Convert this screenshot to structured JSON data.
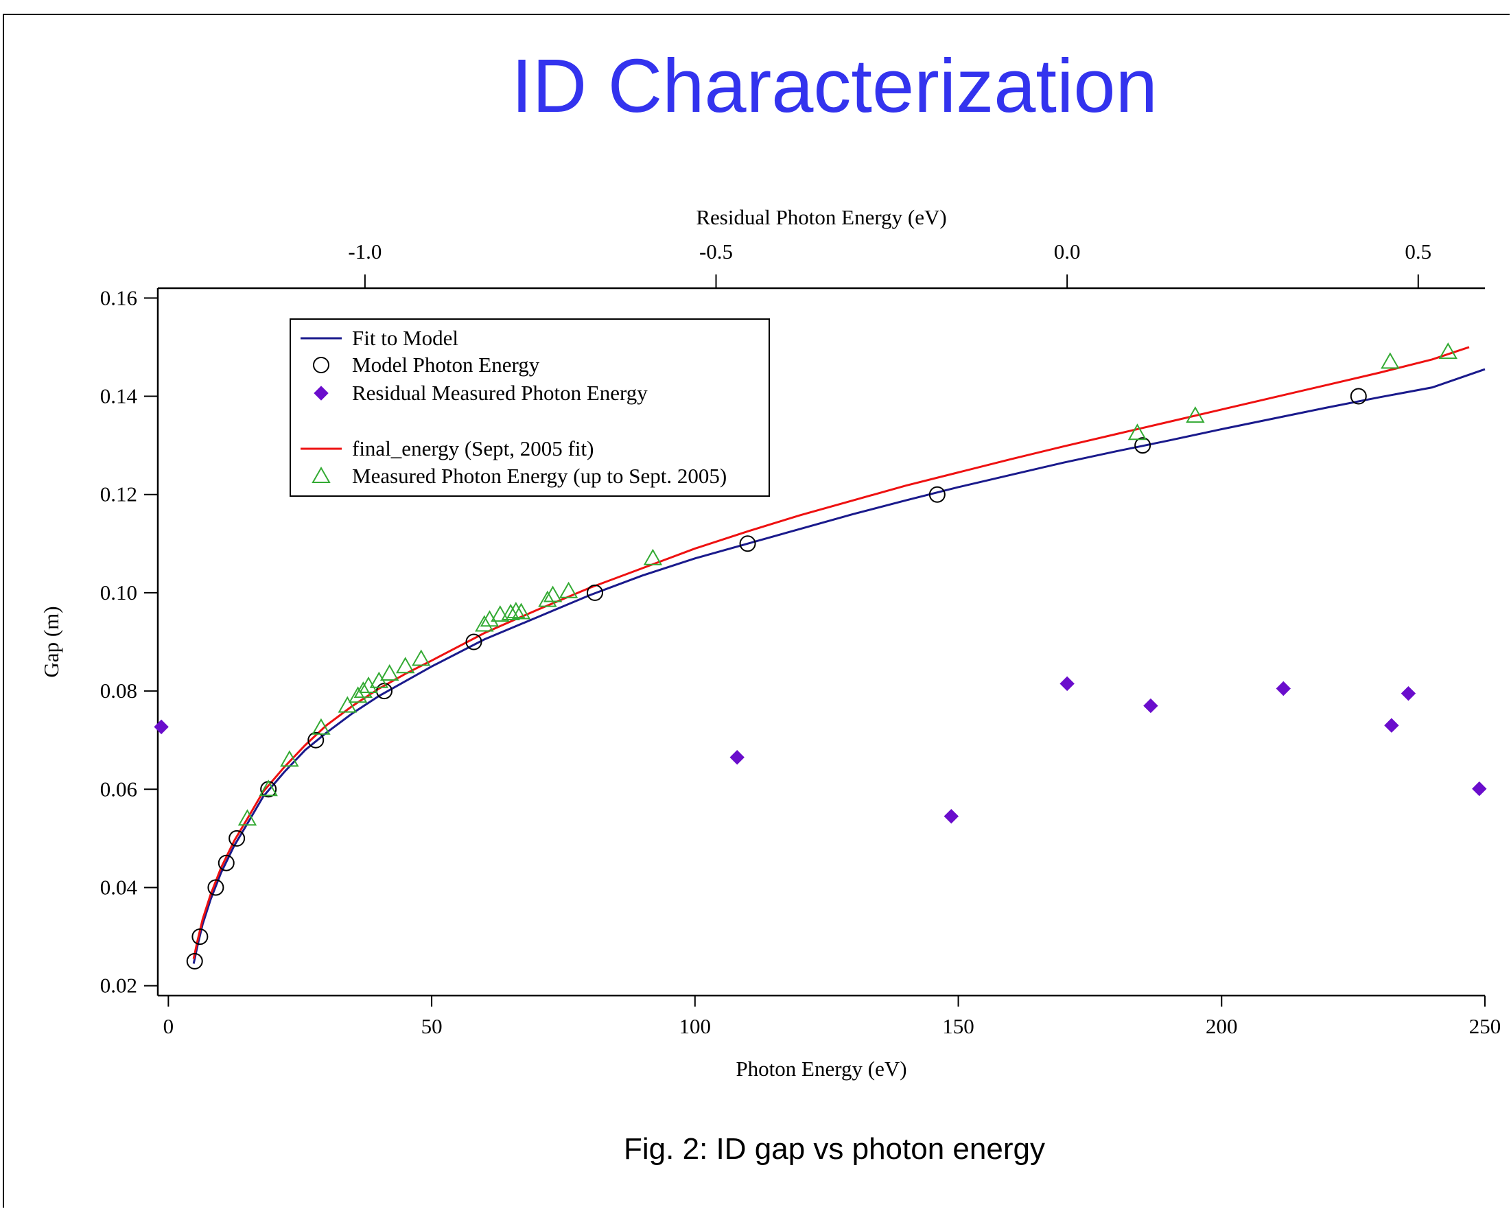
{
  "page": {
    "title": "ID Characterization",
    "caption": "Fig. 2: ID gap vs photon energy"
  },
  "chart_data": {
    "type": "scatter",
    "xlabel": "Photon Energy (eV)",
    "ylabel": "Gap (m)",
    "x2label": "Residual Photon Energy (eV)",
    "xlim": [
      -2,
      250
    ],
    "ylim": [
      0.018,
      0.162
    ],
    "x2lim": [
      -1.295,
      0.595
    ],
    "xticks": [
      0,
      50,
      100,
      150,
      200,
      250
    ],
    "yticks": [
      0.02,
      0.04,
      0.06,
      0.08,
      0.1,
      0.12,
      0.14,
      0.16
    ],
    "ytick_labels": [
      "0.02",
      "0.04",
      "0.06",
      "0.08",
      "0.10",
      "0.12",
      "0.14",
      "0.16"
    ],
    "x2ticks": [
      -1.0,
      -0.5,
      0.0,
      0.5
    ],
    "x2tick_labels": [
      "-1.0",
      "-0.5",
      "0.0",
      "0.5"
    ],
    "grid": false,
    "legend_position": "top-left",
    "colors": {
      "fit": "#1a1a8c",
      "final": "#ee1111",
      "triangle": "#33aa33",
      "diamond": "#6a0dcc",
      "circle": "#000000"
    },
    "legend": [
      {
        "label": "Fit to Model",
        "marker": "line",
        "color": "#1a1a8c"
      },
      {
        "label": "Model Photon Energy",
        "marker": "circle",
        "color": "#000000"
      },
      {
        "label": "Residual Measured Photon Energy",
        "marker": "diamond",
        "color": "#6a0dcc"
      },
      {
        "label": "",
        "marker": "none",
        "color": ""
      },
      {
        "label": "final_energy (Sept, 2005 fit)",
        "marker": "line",
        "color": "#ee1111"
      },
      {
        "label": "Measured Photon Energy (up to Sept. 2005)",
        "marker": "triangle",
        "color": "#33aa33"
      }
    ],
    "series": [
      {
        "name": "Fit to Model",
        "kind": "line",
        "x": [
          4.8,
          5.5,
          6.5,
          8,
          10,
          12.5,
          15,
          18,
          22,
          26,
          30,
          35,
          40,
          45,
          50,
          60,
          70,
          80,
          90,
          100,
          110,
          120,
          130,
          140,
          150,
          160,
          170,
          180,
          190,
          200,
          210,
          220,
          230,
          240,
          250
        ],
        "y": [
          0.0245,
          0.028,
          0.0325,
          0.0375,
          0.043,
          0.0485,
          0.053,
          0.0585,
          0.0635,
          0.068,
          0.0715,
          0.0755,
          0.079,
          0.082,
          0.085,
          0.0905,
          0.095,
          0.0995,
          0.1035,
          0.107,
          0.11,
          0.113,
          0.116,
          0.1188,
          0.1215,
          0.124,
          0.1265,
          0.1288,
          0.131,
          0.1333,
          0.1355,
          0.1377,
          0.1398,
          0.1418,
          0.1455
        ]
      },
      {
        "name": "final_energy (Sept, 2005 fit)",
        "kind": "line",
        "x": [
          4.8,
          5.5,
          6.5,
          8,
          10,
          12.5,
          15,
          18,
          22,
          26,
          30,
          35,
          40,
          45,
          50,
          60,
          70,
          80,
          90,
          100,
          110,
          120,
          130,
          140,
          150,
          160,
          170,
          180,
          190,
          200,
          210,
          220,
          230,
          240,
          247
        ],
        "y": [
          0.0255,
          0.029,
          0.0335,
          0.0385,
          0.044,
          0.0495,
          0.054,
          0.0595,
          0.0645,
          0.069,
          0.073,
          0.077,
          0.0805,
          0.0835,
          0.0862,
          0.0918,
          0.0965,
          0.101,
          0.105,
          0.109,
          0.1125,
          0.1158,
          0.1188,
          0.1218,
          0.1245,
          0.1272,
          0.1298,
          0.1323,
          0.1348,
          0.1373,
          0.1398,
          0.1423,
          0.1448,
          0.1475,
          0.15
        ]
      },
      {
        "name": "Model Photon Energy",
        "kind": "circle",
        "x": [
          5,
          6,
          9,
          11,
          13,
          19,
          28,
          41,
          58,
          81,
          110,
          146,
          185,
          226
        ],
        "y": [
          0.025,
          0.03,
          0.04,
          0.045,
          0.05,
          0.06,
          0.07,
          0.08,
          0.09,
          0.1,
          0.11,
          0.12,
          0.13,
          0.14
        ]
      },
      {
        "name": "Measured Photon Energy (up to Sept. 2005)",
        "kind": "triangle",
        "x": [
          15,
          19,
          23,
          29,
          34,
          36,
          37,
          38,
          40,
          42,
          45,
          48,
          60,
          61,
          63,
          65,
          66,
          67,
          72,
          73,
          76,
          92,
          184,
          195,
          232,
          243
        ],
        "y": [
          0.054,
          0.06,
          0.066,
          0.0725,
          0.077,
          0.079,
          0.08,
          0.081,
          0.082,
          0.0835,
          0.085,
          0.0865,
          0.0935,
          0.0945,
          0.0955,
          0.0958,
          0.0962,
          0.096,
          0.0985,
          0.0995,
          0.1003,
          0.107,
          0.1325,
          0.136,
          0.147,
          0.149
        ]
      },
      {
        "name": "Residual Measured Photon Energy",
        "kind": "diamond",
        "x2": [
          -1.29,
          -0.47,
          -0.165,
          0.0,
          0.119,
          0.308,
          0.462,
          0.486,
          0.587
        ],
        "y": [
          0.0727,
          0.0665,
          0.0545,
          0.0815,
          0.077,
          0.0805,
          0.073,
          0.0795,
          0.0601
        ]
      }
    ]
  }
}
